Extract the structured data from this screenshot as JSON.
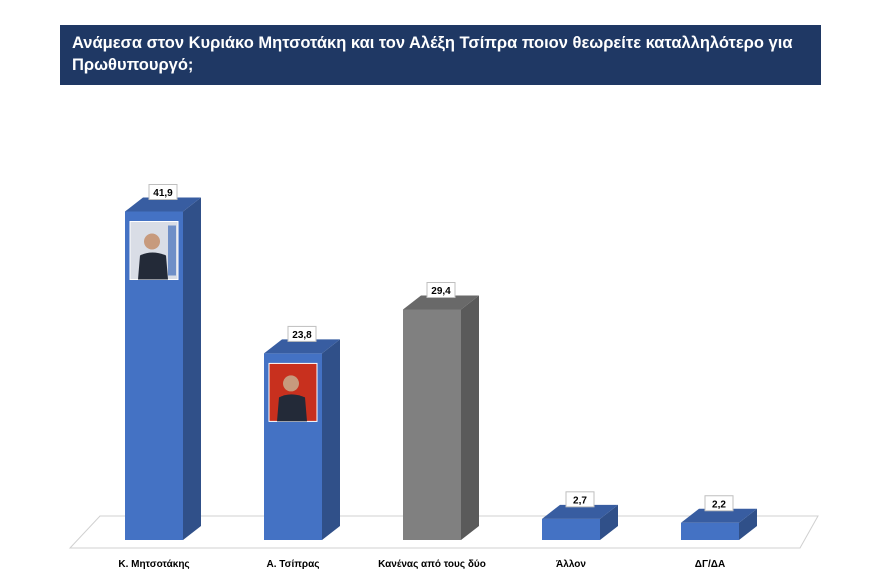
{
  "title": "Ανάμεσα στον Κυριάκο Μητσοτάκη και τον Αλέξη Τσίπρα ποιον θεωρείτε καταλληλότερο για Πρωθυπουργό;",
  "colors": {
    "title_bg": "#1f3864",
    "blue": "#4472c4",
    "gray": "#808080"
  },
  "chart_data": {
    "type": "bar",
    "title": "Ανάμεσα στον Κυριάκο Μητσοτάκη και τον Αλέξη Τσίπρα ποιον θεωρείτε καταλληλότερο για Πρωθυπουργό;",
    "categories": [
      "Κ. Μητσοτάκης",
      "Α. Τσίπρας",
      "Κανένας από τους δύο",
      "Άλλον",
      "ΔΓ/ΔΑ"
    ],
    "values": [
      41.9,
      23.8,
      29.4,
      2.7,
      2.2
    ],
    "value_labels": [
      "41,9",
      "23,8",
      "29,4",
      "2,7",
      "2,2"
    ],
    "bar_colors": [
      "#4472c4",
      "#4472c4",
      "#808080",
      "#4472c4",
      "#4472c4"
    ],
    "bar_images": [
      "photo-mitsotakis",
      "photo-tsipras",
      null,
      null,
      null
    ],
    "style": "3d-column",
    "grid": false,
    "legend": "none",
    "ylim": [
      0,
      50
    ]
  }
}
